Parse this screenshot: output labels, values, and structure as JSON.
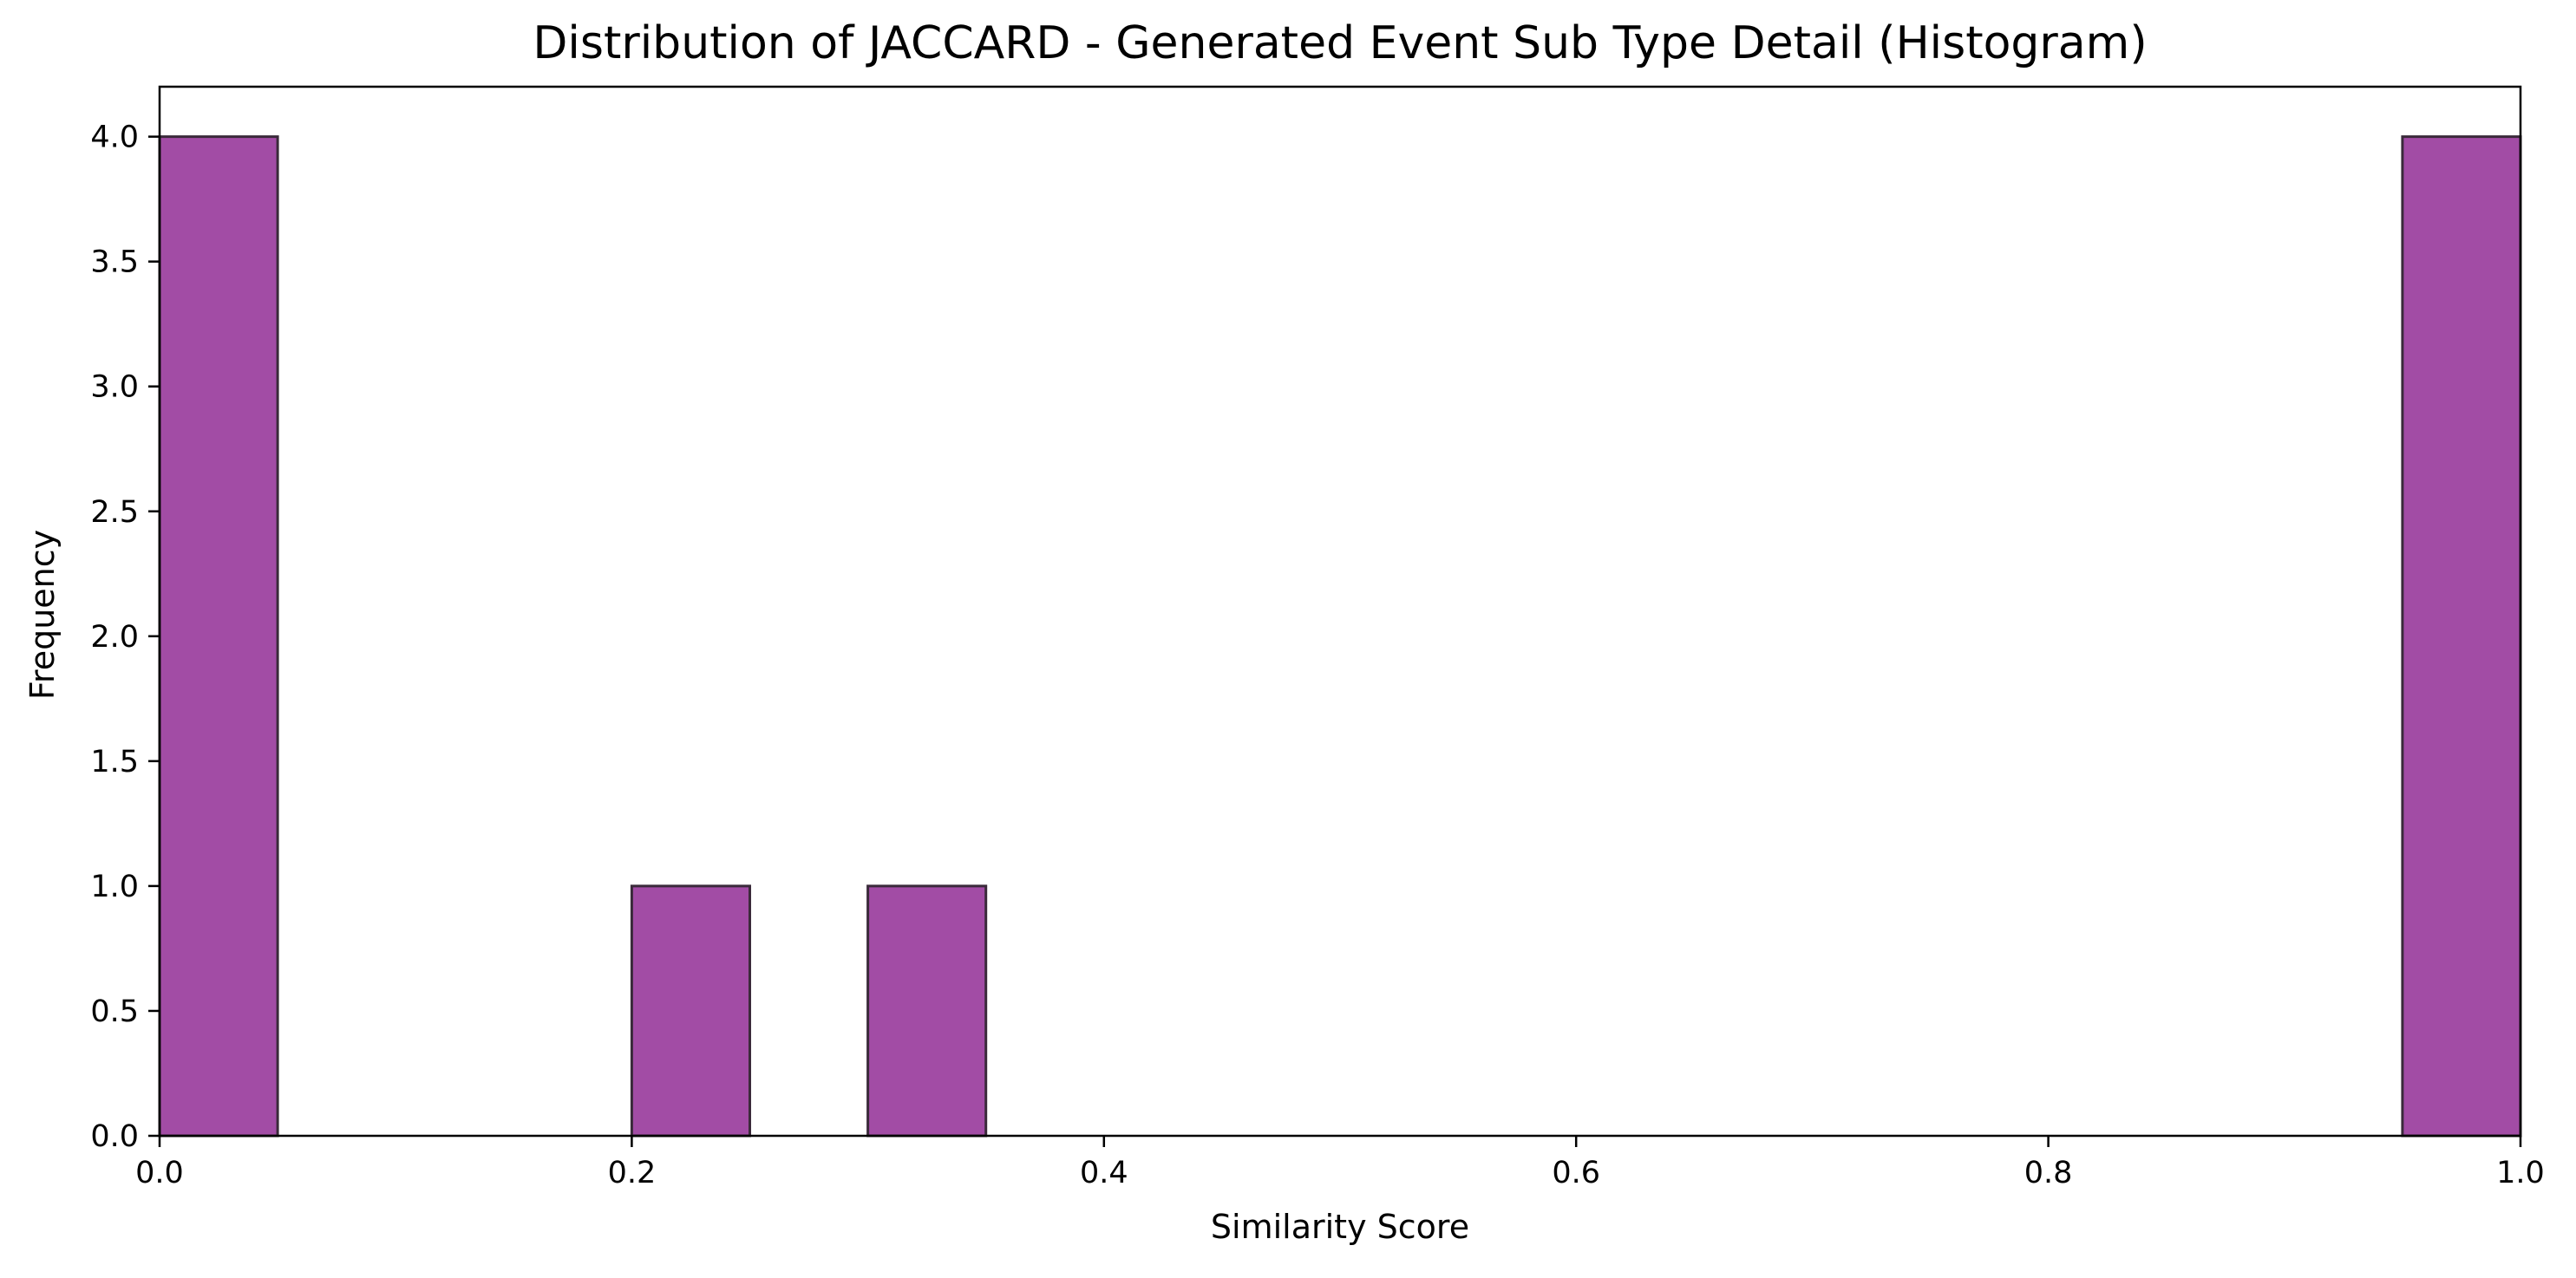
{
  "chart_data": {
    "type": "bar",
    "title": "Distribution of JACCARD - Generated Event Sub Type Detail (Histogram)",
    "xlabel": "Similarity Score",
    "ylabel": "Frequency",
    "xlim": [
      0.0,
      1.0
    ],
    "ylim": [
      0.0,
      4.2
    ],
    "xticks": [
      "0.0",
      "0.2",
      "0.4",
      "0.6",
      "0.8",
      "1.0"
    ],
    "yticks": [
      "0.0",
      "0.5",
      "1.0",
      "1.5",
      "2.0",
      "2.5",
      "3.0",
      "3.5",
      "4.0"
    ],
    "grid": false,
    "bin_width": 0.05,
    "bins": [
      {
        "x0": 0.0,
        "x1": 0.05,
        "count": 4
      },
      {
        "x0": 0.05,
        "x1": 0.1,
        "count": 0
      },
      {
        "x0": 0.1,
        "x1": 0.15,
        "count": 0
      },
      {
        "x0": 0.15,
        "x1": 0.2,
        "count": 0
      },
      {
        "x0": 0.2,
        "x1": 0.25,
        "count": 1
      },
      {
        "x0": 0.25,
        "x1": 0.3,
        "count": 0
      },
      {
        "x0": 0.3,
        "x1": 0.35,
        "count": 1
      },
      {
        "x0": 0.35,
        "x1": 0.4,
        "count": 0
      },
      {
        "x0": 0.4,
        "x1": 0.45,
        "count": 0
      },
      {
        "x0": 0.45,
        "x1": 0.5,
        "count": 0
      },
      {
        "x0": 0.5,
        "x1": 0.55,
        "count": 0
      },
      {
        "x0": 0.55,
        "x1": 0.6,
        "count": 0
      },
      {
        "x0": 0.6,
        "x1": 0.65,
        "count": 0
      },
      {
        "x0": 0.65,
        "x1": 0.7,
        "count": 0
      },
      {
        "x0": 0.7,
        "x1": 0.75,
        "count": 0
      },
      {
        "x0": 0.75,
        "x1": 0.8,
        "count": 0
      },
      {
        "x0": 0.8,
        "x1": 0.85,
        "count": 0
      },
      {
        "x0": 0.85,
        "x1": 0.9,
        "count": 0
      },
      {
        "x0": 0.9,
        "x1": 0.95,
        "count": 0
      },
      {
        "x0": 0.95,
        "x1": 1.0,
        "count": 4
      }
    ],
    "bar_color": "#a24ca5",
    "edge_color": "#3a2a3a"
  }
}
